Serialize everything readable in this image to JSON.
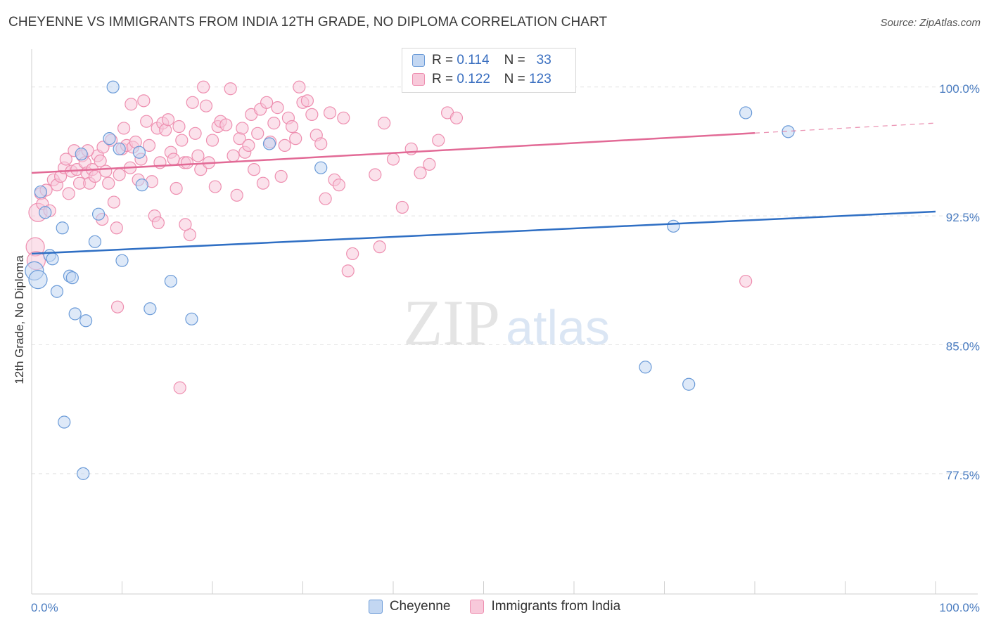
{
  "chart_data": {
    "type": "scatter",
    "title": "CHEYENNE VS IMMIGRANTS FROM INDIA 12TH GRADE, NO DIPLOMA CORRELATION CHART",
    "source": "Source: ZipAtlas.com",
    "xlabel": "",
    "ylabel": "12th Grade, No Diploma",
    "xlim": [
      0,
      100
    ],
    "ylim": [
      70.5,
      102.2
    ],
    "x_tick_labels": [
      "0.0%",
      "100.0%"
    ],
    "y_ticks": [
      77.5,
      85.0,
      92.5,
      100.0
    ],
    "y_tick_labels": [
      "77.5%",
      "85.0%",
      "92.5%",
      "100.0%"
    ],
    "grid": true,
    "watermark": "ZIPatlas",
    "legend": {
      "rows": [
        {
          "r_label": "R =",
          "r_value": "0.114",
          "n_label": "N =",
          "n_value": "33"
        },
        {
          "r_label": "R =",
          "r_value": "0.122",
          "n_label": "N =",
          "n_value": "123"
        }
      ]
    },
    "series": [
      {
        "name": "Cheyenne",
        "color": "#6b9bd8",
        "fill": "#c3d7f2",
        "line_color": "#2f6fc4",
        "trend": {
          "x0": 0,
          "y0": 90.3,
          "x1": 100,
          "y1": 92.75,
          "solid_until": 100
        },
        "points": [
          [
            0.3,
            89.3
          ],
          [
            0.7,
            88.8
          ],
          [
            1.0,
            93.9
          ],
          [
            1.5,
            92.7
          ],
          [
            2.0,
            90.2
          ],
          [
            2.3,
            90.0
          ],
          [
            2.8,
            88.1
          ],
          [
            3.4,
            91.8
          ],
          [
            3.6,
            80.5
          ],
          [
            4.2,
            89.0
          ],
          [
            4.5,
            88.9
          ],
          [
            4.8,
            86.8
          ],
          [
            5.7,
            77.5
          ],
          [
            6.0,
            86.4
          ],
          [
            7.0,
            91.0
          ],
          [
            7.4,
            92.6
          ],
          [
            8.6,
            97.0
          ],
          [
            9.0,
            100.0
          ],
          [
            9.7,
            96.4
          ],
          [
            10.0,
            89.9
          ],
          [
            11.9,
            96.2
          ],
          [
            12.2,
            94.3
          ],
          [
            13.1,
            87.1
          ],
          [
            15.4,
            88.7
          ],
          [
            17.7,
            86.5
          ],
          [
            26.3,
            96.7
          ],
          [
            32.0,
            95.3
          ],
          [
            67.9,
            83.7
          ],
          [
            71.0,
            91.9
          ],
          [
            72.7,
            82.7
          ],
          [
            79.0,
            98.5
          ],
          [
            83.7,
            97.4
          ],
          [
            5.5,
            96.1
          ]
        ]
      },
      {
        "name": "Immigrants from India",
        "color": "#ee8fb0",
        "fill": "#f8c9da",
        "line_color": "#e26a96",
        "trend": {
          "x0": 0,
          "y0": 95.0,
          "x1": 100,
          "y1": 97.9,
          "solid_until": 80
        },
        "points": [
          [
            0.4,
            90.7
          ],
          [
            0.7,
            92.7
          ],
          [
            1.0,
            93.8
          ],
          [
            1.2,
            93.2
          ],
          [
            1.6,
            94.0
          ],
          [
            2.0,
            92.8
          ],
          [
            2.4,
            94.6
          ],
          [
            2.8,
            94.3
          ],
          [
            3.2,
            94.8
          ],
          [
            3.6,
            95.3
          ],
          [
            3.8,
            95.8
          ],
          [
            4.1,
            93.8
          ],
          [
            4.4,
            95.1
          ],
          [
            4.7,
            96.3
          ],
          [
            5.0,
            95.2
          ],
          [
            5.3,
            94.4
          ],
          [
            5.6,
            96.0
          ],
          [
            5.9,
            95.6
          ],
          [
            6.1,
            95.0
          ],
          [
            6.4,
            94.4
          ],
          [
            6.7,
            95.2
          ],
          [
            7.0,
            94.8
          ],
          [
            7.3,
            96.0
          ],
          [
            7.6,
            95.7
          ],
          [
            7.9,
            96.5
          ],
          [
            8.2,
            95.1
          ],
          [
            8.5,
            94.4
          ],
          [
            8.8,
            96.9
          ],
          [
            9.1,
            93.3
          ],
          [
            9.4,
            91.8
          ],
          [
            9.7,
            94.9
          ],
          [
            10.0,
            96.4
          ],
          [
            10.2,
            97.6
          ],
          [
            10.5,
            96.6
          ],
          [
            10.9,
            95.3
          ],
          [
            11.2,
            96.5
          ],
          [
            11.5,
            96.8
          ],
          [
            11.8,
            94.6
          ],
          [
            12.1,
            95.8
          ],
          [
            12.4,
            99.2
          ],
          [
            12.7,
            98.0
          ],
          [
            13.0,
            96.6
          ],
          [
            13.3,
            94.5
          ],
          [
            13.6,
            92.5
          ],
          [
            13.9,
            97.6
          ],
          [
            14.2,
            95.6
          ],
          [
            14.5,
            97.9
          ],
          [
            14.8,
            97.5
          ],
          [
            15.1,
            98.1
          ],
          [
            15.4,
            96.2
          ],
          [
            15.7,
            95.8
          ],
          [
            16.0,
            94.1
          ],
          [
            16.3,
            97.7
          ],
          [
            16.6,
            96.9
          ],
          [
            16.9,
            95.6
          ],
          [
            17.2,
            95.6
          ],
          [
            17.5,
            91.4
          ],
          [
            17.8,
            99.1
          ],
          [
            18.1,
            97.3
          ],
          [
            18.4,
            96.0
          ],
          [
            18.7,
            95.2
          ],
          [
            19.0,
            100.0
          ],
          [
            19.3,
            98.9
          ],
          [
            19.6,
            95.6
          ],
          [
            20.0,
            96.9
          ],
          [
            20.3,
            94.2
          ],
          [
            20.6,
            97.7
          ],
          [
            20.9,
            98.0
          ],
          [
            21.5,
            97.8
          ],
          [
            22.0,
            99.9
          ],
          [
            22.3,
            96.0
          ],
          [
            22.7,
            93.7
          ],
          [
            23.0,
            97.0
          ],
          [
            23.3,
            97.6
          ],
          [
            23.6,
            96.2
          ],
          [
            24.0,
            96.6
          ],
          [
            24.3,
            98.4
          ],
          [
            24.6,
            95.2
          ],
          [
            25.0,
            97.3
          ],
          [
            25.3,
            98.7
          ],
          [
            25.6,
            94.4
          ],
          [
            26.0,
            99.1
          ],
          [
            26.4,
            96.8
          ],
          [
            26.8,
            97.9
          ],
          [
            27.2,
            98.8
          ],
          [
            27.6,
            94.8
          ],
          [
            28.0,
            96.6
          ],
          [
            28.4,
            98.2
          ],
          [
            28.8,
            97.7
          ],
          [
            29.2,
            97.0
          ],
          [
            29.6,
            100.0
          ],
          [
            30.0,
            99.1
          ],
          [
            30.5,
            99.2
          ],
          [
            31.0,
            98.4
          ],
          [
            31.5,
            97.2
          ],
          [
            32.0,
            96.7
          ],
          [
            32.5,
            93.5
          ],
          [
            33.0,
            98.5
          ],
          [
            33.5,
            94.6
          ],
          [
            34.0,
            94.3
          ],
          [
            34.5,
            98.2
          ],
          [
            35.0,
            89.3
          ],
          [
            35.5,
            90.3
          ],
          [
            38.0,
            94.9
          ],
          [
            38.5,
            90.7
          ],
          [
            39.0,
            97.9
          ],
          [
            40.0,
            95.8
          ],
          [
            41.0,
            93.0
          ],
          [
            42.0,
            96.4
          ],
          [
            43.0,
            95.0
          ],
          [
            44.0,
            95.5
          ],
          [
            45.0,
            96.9
          ],
          [
            46.0,
            98.5
          ],
          [
            47.0,
            98.2
          ],
          [
            9.5,
            87.2
          ],
          [
            14.0,
            92.1
          ],
          [
            17.0,
            92.0
          ],
          [
            16.4,
            82.5
          ],
          [
            7.8,
            92.3
          ],
          [
            79.0,
            88.7
          ],
          [
            6.2,
            96.3
          ],
          [
            0.5,
            89.9
          ],
          [
            11.0,
            99.0
          ]
        ]
      }
    ]
  }
}
